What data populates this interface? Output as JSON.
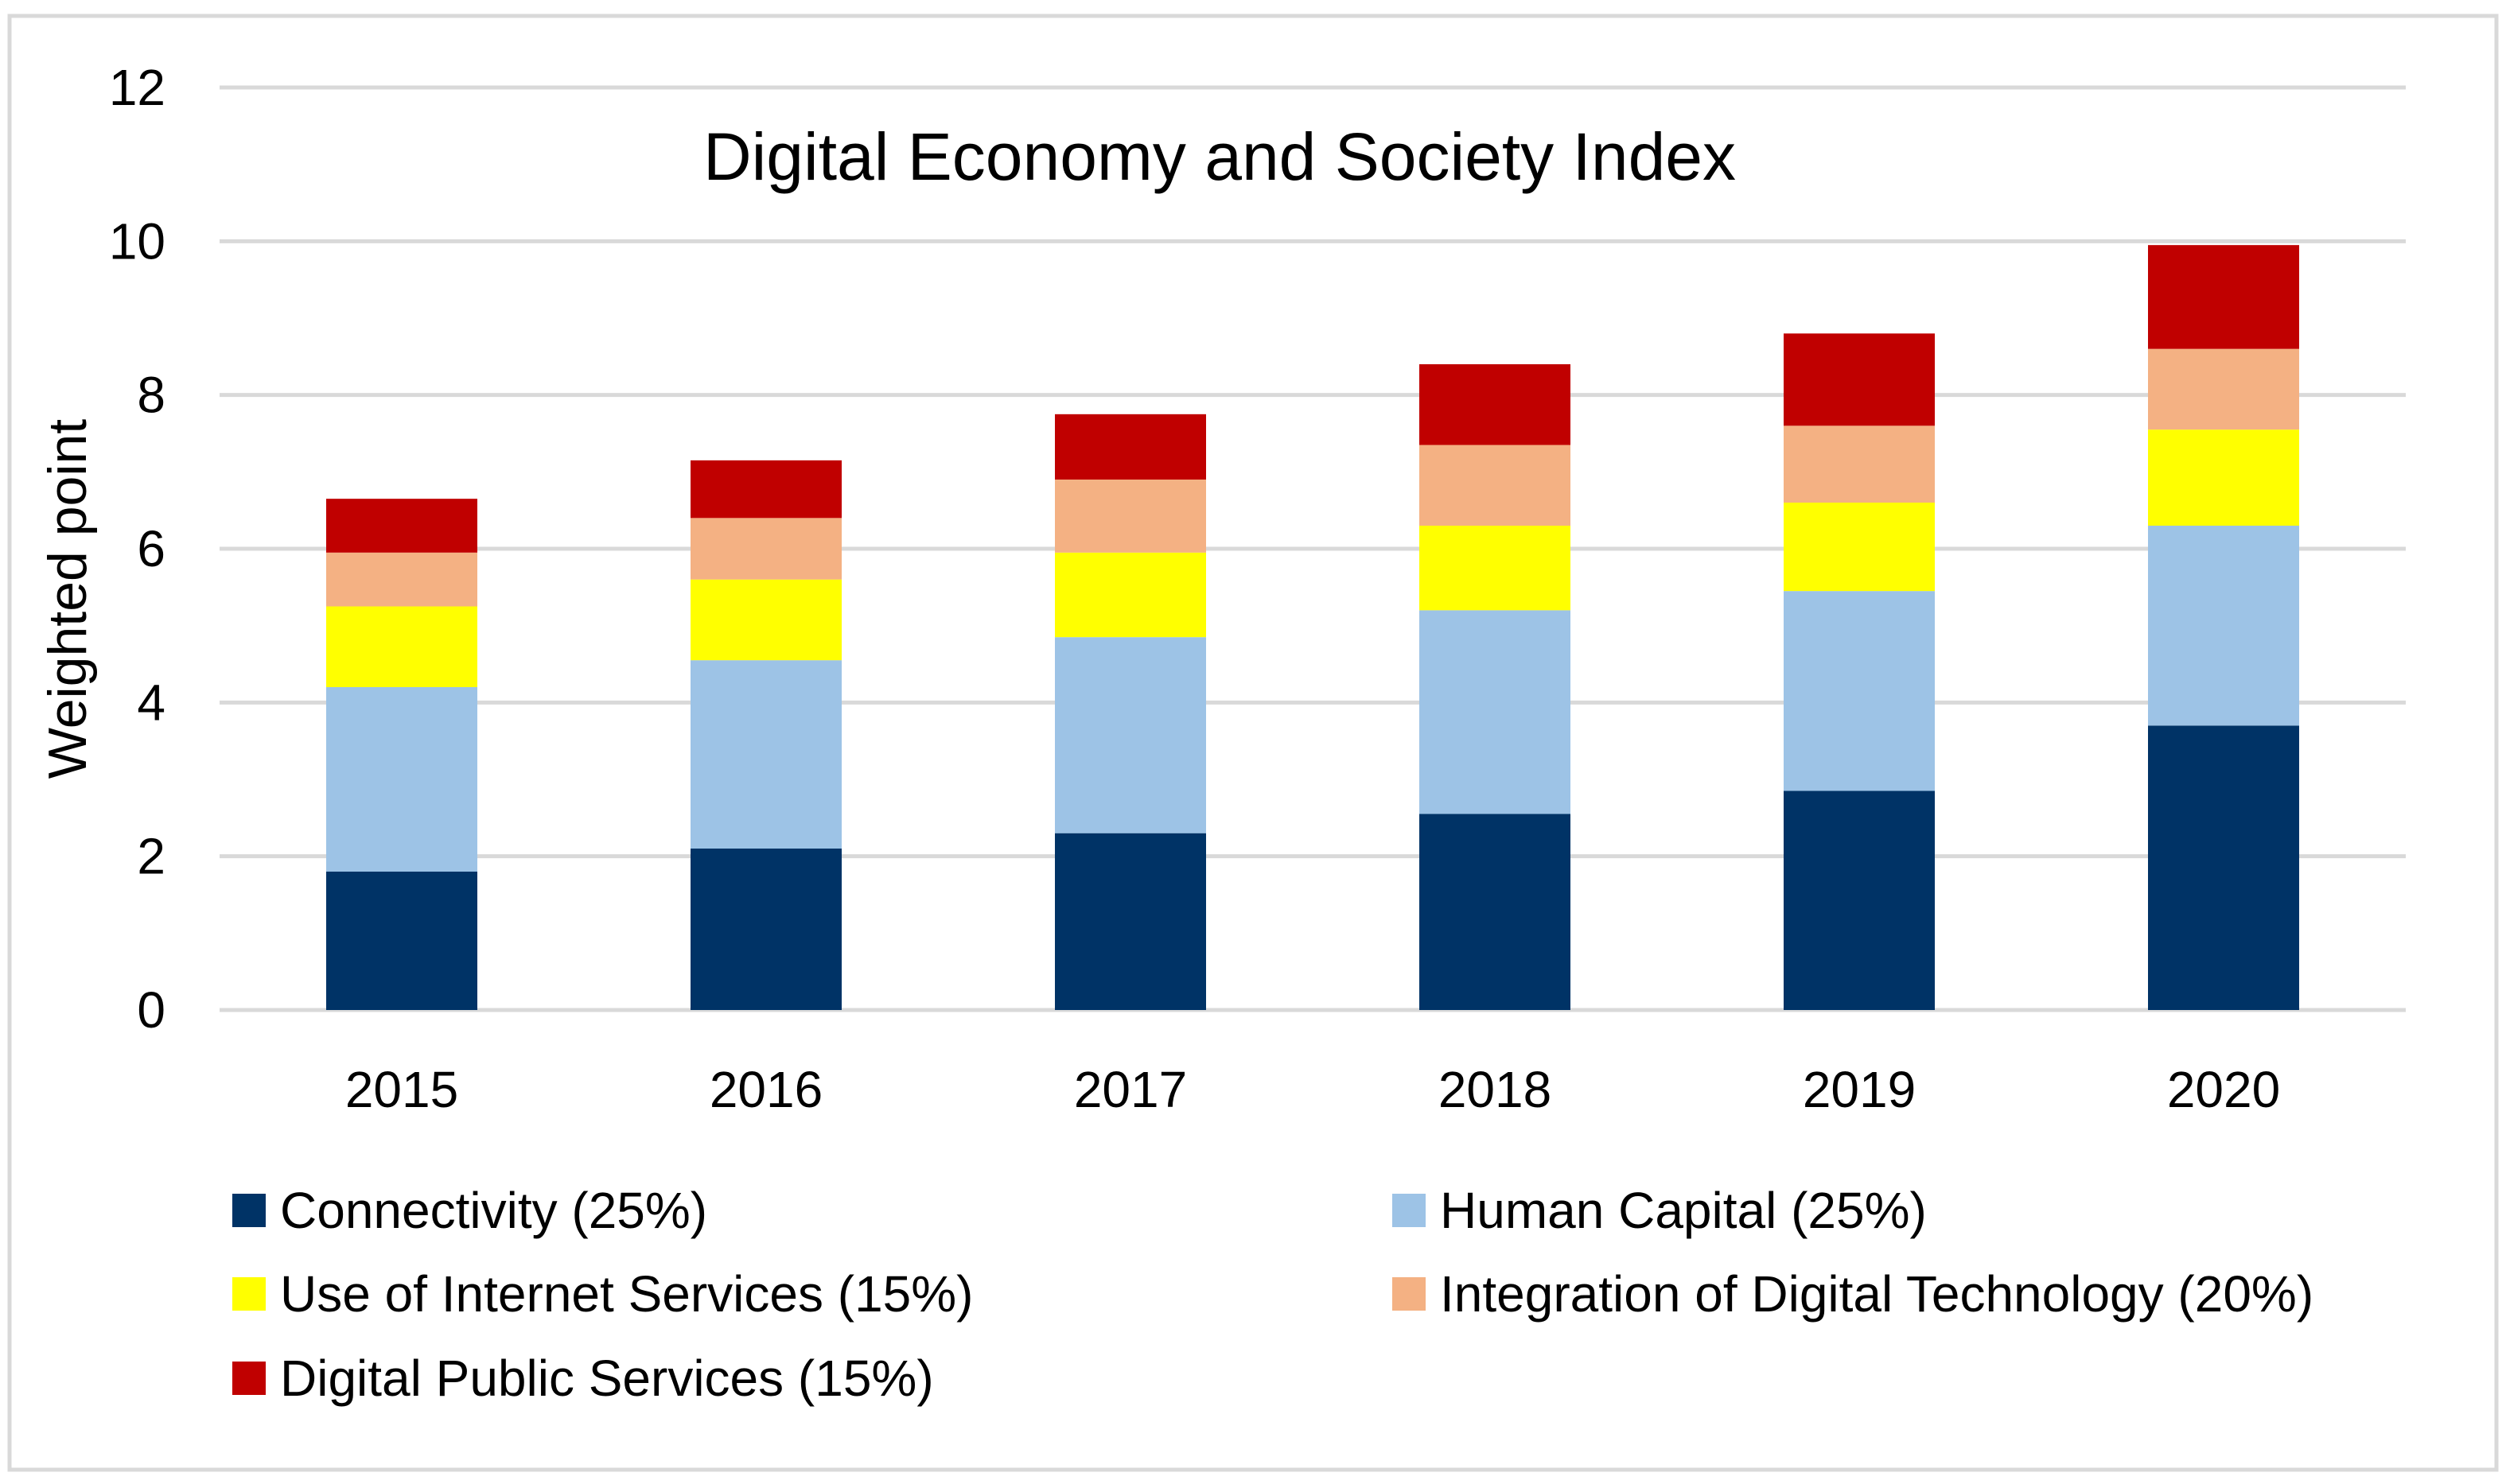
{
  "chart_data": {
    "type": "bar",
    "stacked": true,
    "title": "Digital Economy and Society Index",
    "xlabel": "",
    "ylabel": "Weighted point",
    "ylim": [
      0,
      12
    ],
    "yticks": [
      0,
      2,
      4,
      6,
      8,
      10,
      12
    ],
    "grid": true,
    "legend_position": "bottom",
    "categories": [
      "2015",
      "2016",
      "2017",
      "2018",
      "2019",
      "2020"
    ],
    "series": [
      {
        "name": "Connectivity (25%)",
        "color": "#003366",
        "values": [
          1.8,
          2.1,
          2.3,
          2.55,
          2.85,
          3.7
        ]
      },
      {
        "name": "Human Capital (25%)",
        "color": "#9DC3E6",
        "values": [
          2.4,
          2.45,
          2.55,
          2.65,
          2.6,
          2.6
        ]
      },
      {
        "name": "Use of Internet Services (15%)",
        "color": "#FFFF00",
        "values": [
          1.05,
          1.05,
          1.1,
          1.1,
          1.15,
          1.25
        ]
      },
      {
        "name": "Integration of Digital Technology (20%)",
        "color": "#F4B183",
        "values": [
          0.7,
          0.8,
          0.95,
          1.05,
          1.0,
          1.05
        ]
      },
      {
        "name": "Digital Public Services (15%)",
        "color": "#C00000",
        "values": [
          0.7,
          0.75,
          0.85,
          1.05,
          1.2,
          1.35
        ]
      }
    ]
  }
}
